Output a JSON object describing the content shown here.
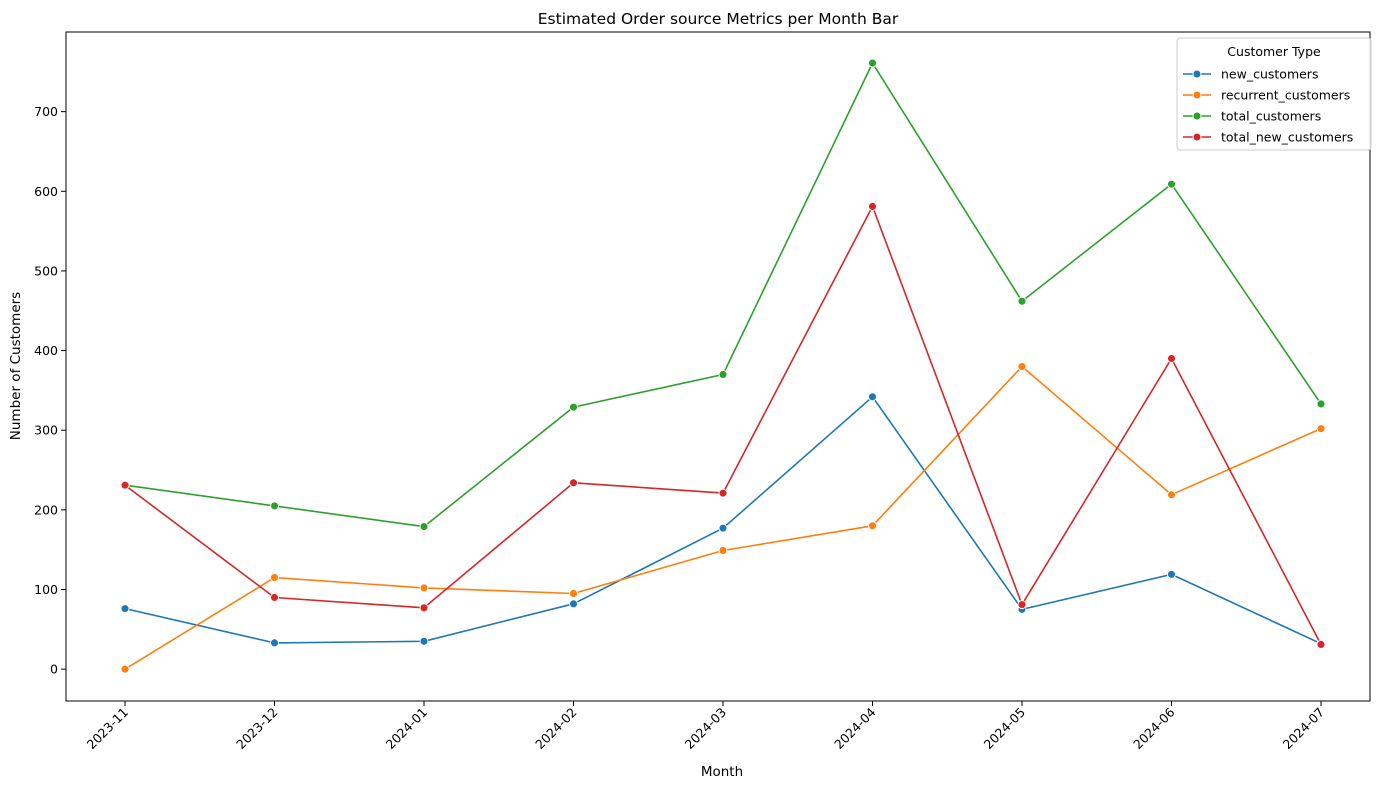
{
  "chart_data": {
    "type": "line",
    "title": "Estimated Order source Metrics per Month Bar",
    "xlabel": "Month",
    "ylabel": "Number of Customers",
    "categories": [
      "2023-11",
      "2023-12",
      "2024-01",
      "2024-02",
      "2024-03",
      "2024-04",
      "2024-05",
      "2024-06",
      "2024-07"
    ],
    "ylim": [
      -40,
      800
    ],
    "yticks": [
      0,
      100,
      200,
      300,
      400,
      500,
      600,
      700
    ],
    "grid": false,
    "legend": {
      "title": "Customer Type",
      "placement": "top-right"
    },
    "series": [
      {
        "name": "new_customers",
        "color": "#1f77b4",
        "values": [
          76,
          33,
          35,
          82,
          177,
          342,
          75,
          119,
          32
        ]
      },
      {
        "name": "recurrent_customers",
        "color": "#ff7f0e",
        "values": [
          0,
          115,
          102,
          95,
          149,
          180,
          380,
          219,
          302
        ]
      },
      {
        "name": "total_customers",
        "color": "#2ca02c",
        "values": [
          231,
          205,
          179,
          329,
          370,
          761,
          462,
          609,
          333
        ]
      },
      {
        "name": "total_new_customers",
        "color": "#d62728",
        "values": [
          231,
          90,
          77,
          234,
          221,
          581,
          81,
          390,
          31
        ]
      }
    ]
  }
}
